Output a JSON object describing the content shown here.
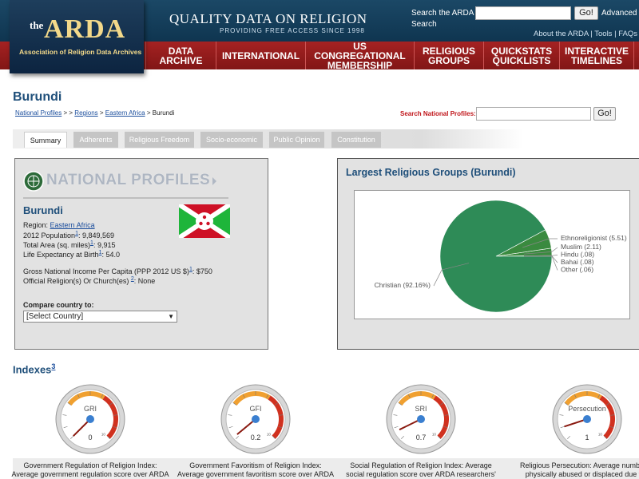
{
  "header": {
    "logo_the": "the",
    "logo_name": "ARDA",
    "logo_sub": "Association of Religion Data Archives",
    "tagline": "QUALITY DATA ON RELIGION",
    "tagline_sub": "PROVIDING FREE ACCESS SINCE 1998",
    "search_label": "Search the ARDA",
    "search_button": "Go!",
    "advanced": "Advanced",
    "advanced_2": "Search",
    "links": [
      "About the ARDA",
      "Tools",
      "FAQs"
    ],
    "link_separator": "|"
  },
  "nav": [
    "DATA ARCHIVE",
    "INTERNATIONAL",
    "US CONGREGATIONAL MEMBERSHIP",
    "RELIGIOUS GROUPS",
    "QUICKSTATS QUICKLISTS",
    "INTERACTIVE TIMELINES"
  ],
  "page": {
    "title": "Burundi",
    "breadcrumb": [
      "National Profiles",
      ">",
      ">",
      "Regions",
      ">",
      "Eastern Africa",
      ">",
      "Burundi"
    ],
    "search_label": "Search National Profiles:",
    "search_button": "Go!",
    "tabs": [
      "Summary",
      "Adherents",
      "Religious Freedom",
      "Socio-economic",
      "Public Opinion",
      "Constitution"
    ]
  },
  "profile": {
    "banner": "NATIONAL PROFILES",
    "country": "Burundi",
    "fields": [
      {
        "label": "Region:",
        "value": "Eastern Africa"
      },
      {
        "label": "2012 Population",
        "note": "1",
        "value": ": 9,849,569"
      },
      {
        "label": "Total Area (sq. miles)",
        "note": "1",
        "value": ": 9,915"
      },
      {
        "label": "Life Expectancy at Birth",
        "note": "1",
        "value": ": 54.0"
      },
      {
        "label": "Gross National Income Per Capita (PPP 2012 US $)",
        "note": "1",
        "value": ": $750"
      },
      {
        "label": "Official Religion(s) Or Church(es)",
        "note": "2",
        "value": ": None"
      }
    ],
    "compare_label": "Compare country to:",
    "compare_select": "[Select Country]"
  },
  "chart_data": {
    "type": "pie",
    "title": "Largest Religious Groups (Burundi)",
    "categories": [
      "Christian",
      "Ethnoreligionist",
      "Muslim",
      "Hindu",
      "Bahai",
      "Other"
    ],
    "values": [
      92.16,
      5.51,
      2.11,
      0.08,
      0.08,
      0.06
    ],
    "value_labels": [
      "(92.16%)",
      "(5.51)",
      "(2.11)",
      "(.08)",
      "(.08)",
      "(.06)"
    ],
    "colors": [
      "#2e8b57",
      "#3a8a3f",
      "#3a8a3f",
      "#3a8a3f",
      "#3a8a3f",
      "#3a8a3f"
    ]
  },
  "indexes": {
    "title": "Indexes",
    "note": "3",
    "gauges": [
      {
        "label": "GRI",
        "value": 0,
        "min": 0,
        "max": 10,
        "caption": [
          "Government Regulation of Religion Index:",
          "Average government regulation score over ARDA"
        ]
      },
      {
        "label": "GFI",
        "value": 0.2,
        "min": 0,
        "max": 10,
        "caption": [
          "Government Favoritism of Religion Index:",
          "Average government favoritism score over ARDA"
        ]
      },
      {
        "label": "SRI",
        "value": 0.7,
        "min": 0,
        "max": 10,
        "caption": [
          "Social Regulation of Religion Index: Average",
          "social regulation score over ARDA researchers'"
        ]
      },
      {
        "label": "Persecution",
        "value": 1,
        "min": 0,
        "max": 10,
        "caption": [
          "Religious Persecution: Average number of",
          "physically abused or displaced due to t"
        ]
      }
    ]
  }
}
